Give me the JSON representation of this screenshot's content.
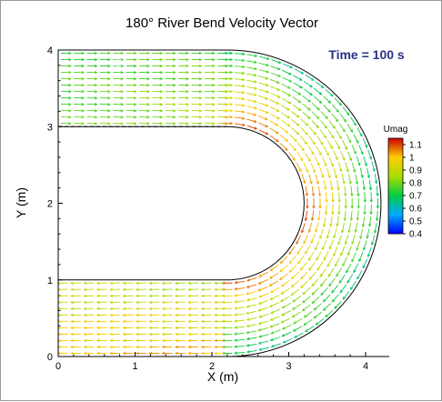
{
  "chart_data": {
    "type": "vector_field",
    "title": "180° River Bend Velocity Vector",
    "annotation": "Time = 100 s",
    "xlabel": "X (m)",
    "ylabel": "Y (m)",
    "xlim": [
      0,
      4.3
    ],
    "ylim": [
      0,
      4
    ],
    "xticks": [
      "0",
      "1",
      "2",
      "3",
      "4"
    ],
    "yticks": [
      "0",
      "1",
      "2",
      "3",
      "4"
    ],
    "grid": false,
    "geometry": {
      "bend_center": [
        2.2,
        2
      ],
      "inner_radius": 1,
      "outer_radius": 2,
      "upstream_channel_x": [
        0,
        2.2
      ],
      "downstream_channel_x": [
        0,
        2.2
      ],
      "dashed_line_y": 3
    },
    "colorbar": {
      "title": "Umag",
      "min": 0.4,
      "max": 1.15,
      "ticks": [
        "1.1",
        "1",
        "0.9",
        "0.8",
        "0.7",
        "0.6",
        "0.5",
        "0.4"
      ],
      "placement": "right"
    }
  }
}
